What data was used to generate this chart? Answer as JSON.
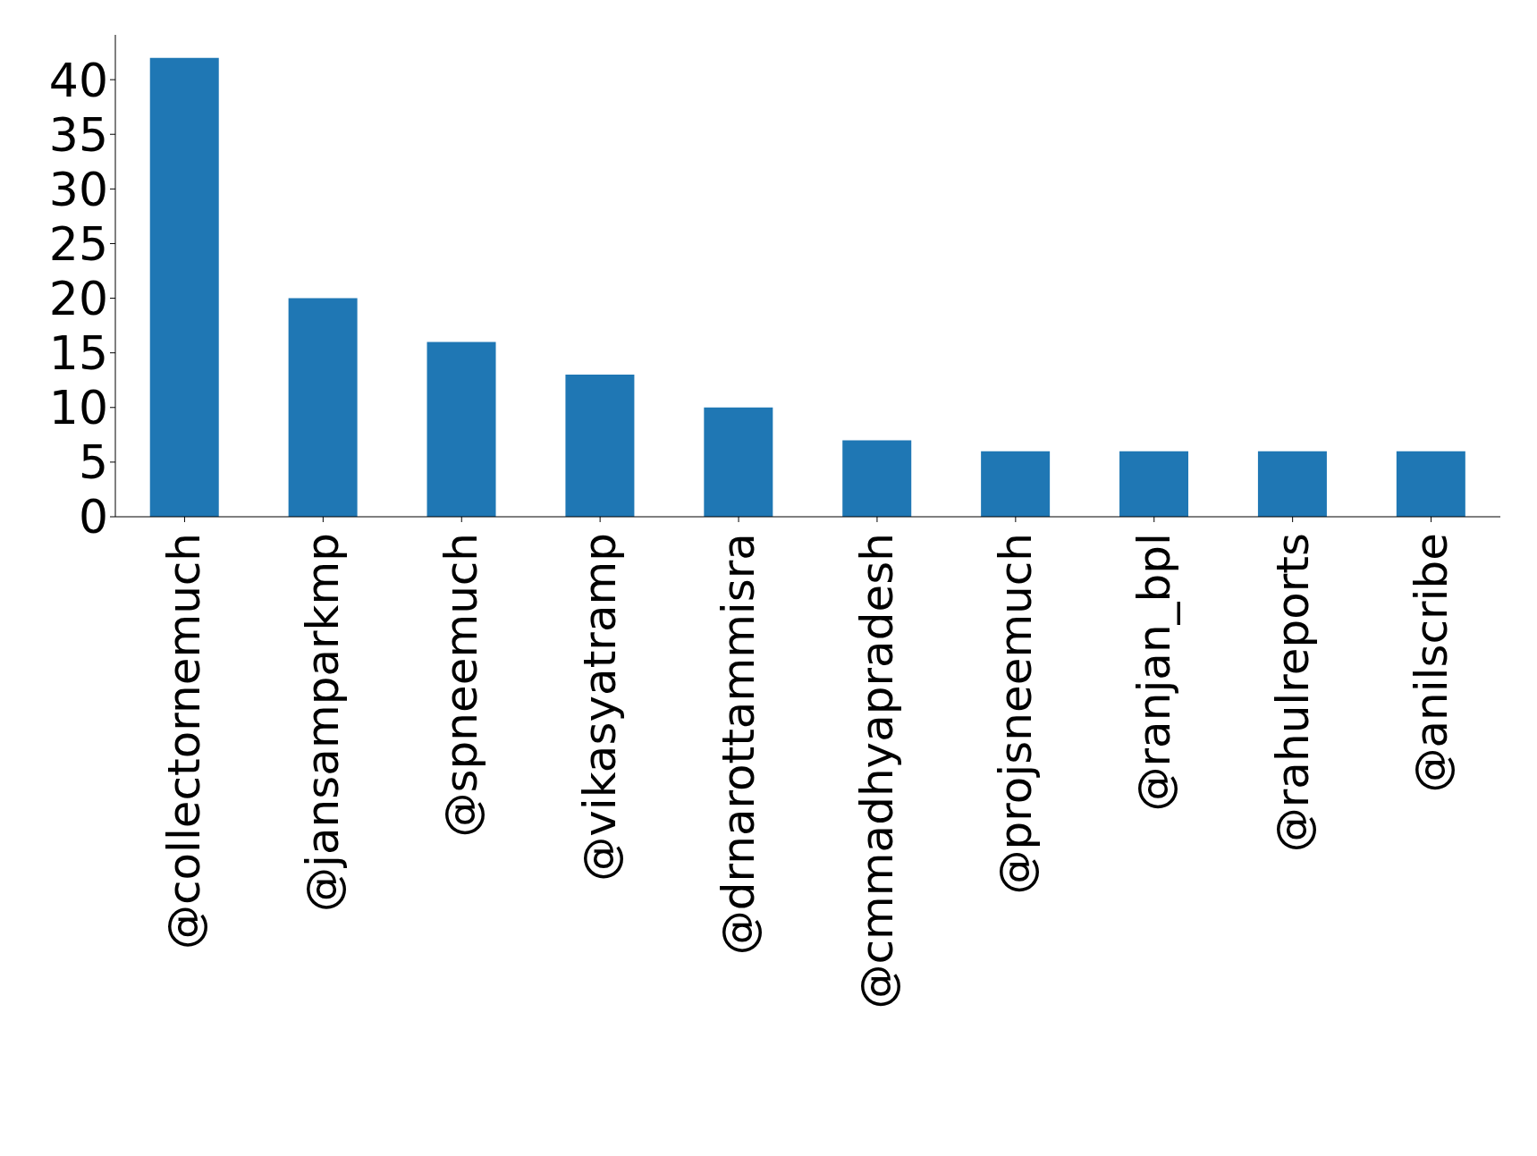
{
  "chart_data": {
    "type": "bar",
    "categories": [
      "@collectornemuch",
      "@jansamparkmp",
      "@spneemuch",
      "@vikasyatramp",
      "@drnarottammisra",
      "@cmmadhyapradesh",
      "@projsneemuch",
      "@ranjan_bpl",
      "@rahulreports",
      "@anilscribe"
    ],
    "values": [
      42,
      20,
      16,
      13,
      10,
      7,
      6,
      6,
      6,
      6
    ],
    "color": "#1f77b4",
    "ylim": [
      0,
      44.1
    ],
    "yticks": [
      0,
      5,
      10,
      15,
      20,
      25,
      30,
      35,
      40
    ],
    "grid": false,
    "legend": false
  }
}
